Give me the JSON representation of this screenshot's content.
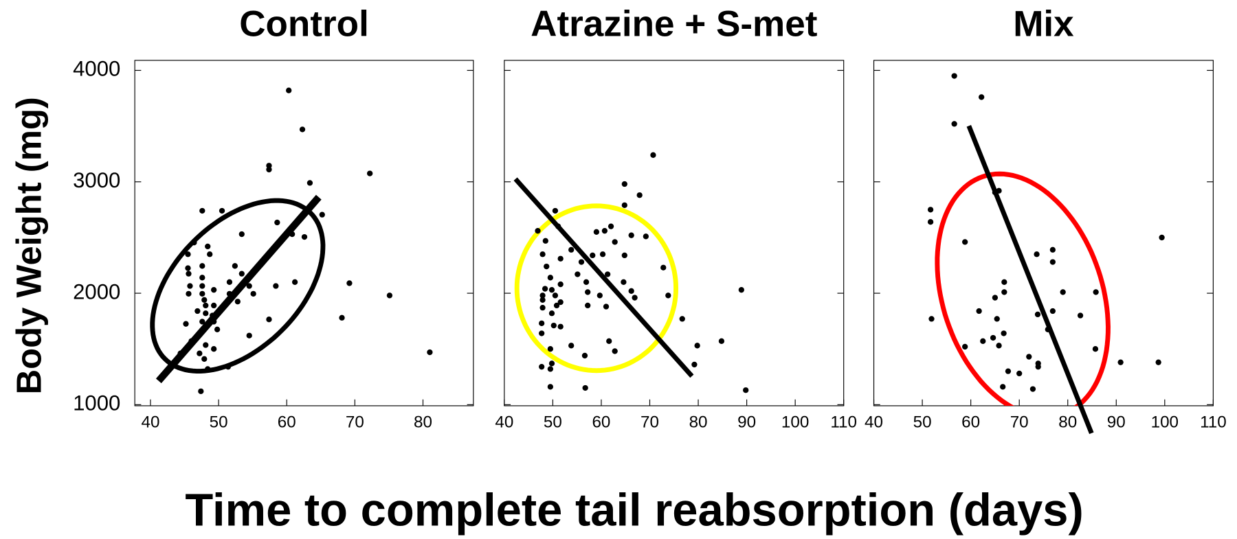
{
  "ylabel": "Body Weight (mg)",
  "xlabel": "Time to complete tail reabsorption (days)",
  "chart_data": [
    {
      "type": "scatter",
      "title": "Control",
      "color": "#000000",
      "xlim": [
        37.7,
        87.4
      ],
      "xticks": [
        40,
        50,
        60,
        70,
        80
      ],
      "ylim": [
        990,
        4090
      ],
      "yticks": [
        1000,
        2000,
        3000,
        4000
      ],
      "x": [
        60.3,
        62.3,
        72.2,
        57.4,
        57.4,
        63.4,
        47.6,
        50.5,
        65.2,
        58.6,
        53.4,
        60.8,
        62.6,
        46.4,
        48.4,
        45.5,
        48.7,
        47.6,
        45.5,
        52.4,
        45.6,
        53.4,
        47.6,
        51.6,
        53.9,
        45.8,
        47.6,
        54.5,
        61.2,
        58.4,
        69.2,
        49.3,
        52.8,
        45.6,
        47.6,
        51.6,
        55.1,
        47.9,
        48.1,
        49.3,
        46.9,
        48.1,
        49.1,
        52.8,
        47.6,
        49.3,
        57.4,
        75.1,
        68.1,
        45.2,
        49.8,
        54.5,
        46.0,
        48.1,
        49.3,
        47.2,
        47.9,
        51.4,
        48.4,
        47.4,
        81.0,
        44.4
      ],
      "values": [
        3820,
        3470,
        3075,
        3145,
        3110,
        2990,
        2740,
        2740,
        2705,
        2635,
        2530,
        2530,
        2505,
        2455,
        2420,
        2350,
        2350,
        2245,
        2225,
        2245,
        2175,
        2175,
        2140,
        2100,
        2100,
        2065,
        2065,
        2065,
        2100,
        2065,
        2090,
        2030,
        2030,
        1995,
        1995,
        1995,
        1995,
        1940,
        1890,
        1890,
        1840,
        1820,
        1800,
        1925,
        1745,
        1745,
        1765,
        1980,
        1780,
        1725,
        1675,
        1620,
        1570,
        1535,
        1500,
        1460,
        1410,
        1340,
        1320,
        1120,
        1470,
        1460
      ],
      "ellipse": {
        "color": "#000000",
        "center": [
          52.8,
          2066
        ],
        "axis1": [
          63.5,
          2720
        ],
        "axis2": [
          59.3,
          1668
        ]
      },
      "fit_line": {
        "color": "#000000",
        "x": [
          41.2,
          64.7
        ],
        "y": [
          1213,
          2862
        ]
      }
    },
    {
      "type": "scatter",
      "title": "Atrazine + S-met",
      "color": "#000000",
      "xlim": [
        40,
        110
      ],
      "xticks": [
        40,
        50,
        60,
        70,
        80,
        90,
        100,
        110
      ],
      "ylim": [
        990,
        4090
      ],
      "yticks": [
        1000,
        2000,
        3000,
        4000
      ],
      "x": [
        70.7,
        64.8,
        67.9,
        50.5,
        64.8,
        46.9,
        51.1,
        60.7,
        59.0,
        66.2,
        69.2,
        62.0,
        48.5,
        53.8,
        62.8,
        60.3,
        47.9,
        51.6,
        64.8,
        55.9,
        58.2,
        48.7,
        72.8,
        55.1,
        61.3,
        49.5,
        56.9,
        64.6,
        51.6,
        48.4,
        49.8,
        57.2,
        66.2,
        47.9,
        59.7,
        50.5,
        73.8,
        66.9,
        88.9,
        51.6,
        47.9,
        57.2,
        61.0,
        50.8,
        47.9,
        49.8,
        47.7,
        51.6,
        50.2,
        76.7,
        47.7,
        61.6,
        79.8,
        84.8,
        53.8,
        49.5,
        62.8,
        56.6,
        79.2,
        47.7,
        49.8,
        49.5,
        49.5,
        56.7,
        89.8
      ],
      "values": [
        3240,
        2980,
        2880,
        2740,
        2790,
        2560,
        2600,
        2560,
        2550,
        2520,
        2510,
        2600,
        2470,
        2390,
        2460,
        2350,
        2350,
        2310,
        2340,
        2280,
        2340,
        2240,
        2230,
        2170,
        2170,
        2140,
        2100,
        2100,
        2080,
        2040,
        2030,
        2010,
        2020,
        1980,
        1980,
        1980,
        1980,
        1960,
        2030,
        1920,
        1940,
        1890,
        1880,
        1890,
        1870,
        1820,
        1730,
        1700,
        1710,
        1770,
        1640,
        1570,
        1530,
        1570,
        1530,
        1500,
        1480,
        1440,
        1360,
        1340,
        1370,
        1320,
        1160,
        1150,
        1130
      ],
      "ellipse": {
        "color": "#ffff00",
        "center": [
          59.0,
          2045
        ],
        "axis1": [
          75.4,
          2045
        ],
        "axis2": [
          59.0,
          2784
        ]
      },
      "fit_line": {
        "color": "#000000",
        "x": [
          42.3,
          78.7
        ],
        "y": [
          3025,
          1256
        ]
      }
    },
    {
      "type": "scatter",
      "title": "Mix",
      "color": "#000000",
      "xlim": [
        40,
        110
      ],
      "xticks": [
        40,
        50,
        60,
        70,
        80,
        90,
        100,
        110
      ],
      "ylim": [
        990,
        4090
      ],
      "yticks": [
        1000,
        2000,
        3000,
        4000
      ],
      "x": [
        56.6,
        62.2,
        56.6,
        51.7,
        51.7,
        99.4,
        58.8,
        76.9,
        73.6,
        76.9,
        65.0,
        65.8,
        66.9,
        66.9,
        85.8,
        79.0,
        65.0,
        61.7,
        76.9,
        73.8,
        82.6,
        51.9,
        65.4,
        75.9,
        66.8,
        64.6,
        62.5,
        65.8,
        58.8,
        85.7,
        72.0,
        73.9,
        73.9,
        90.9,
        98.7,
        67.7,
        70.0,
        66.6,
        72.8
      ],
      "values": [
        3950,
        3760,
        3520,
        2750,
        2640,
        2500,
        2460,
        2390,
        2350,
        2280,
        2905,
        2920,
        2100,
        2010,
        2010,
        2010,
        1960,
        1840,
        1840,
        1810,
        1800,
        1770,
        1770,
        1675,
        1640,
        1600,
        1570,
        1530,
        1520,
        1500,
        1430,
        1370,
        1340,
        1380,
        1380,
        1300,
        1280,
        1160,
        1140
      ],
      "ellipse": {
        "color": "#ff0000",
        "center": [
          70.7,
          1981
        ],
        "axis1": [
          62.5,
          3047
        ],
        "axis2": [
          86.3,
          2208
        ]
      },
      "fit_line": {
        "color": "#000000",
        "x": [
          59.6,
          84.9
        ],
        "y": [
          3502,
          744
        ]
      }
    }
  ]
}
